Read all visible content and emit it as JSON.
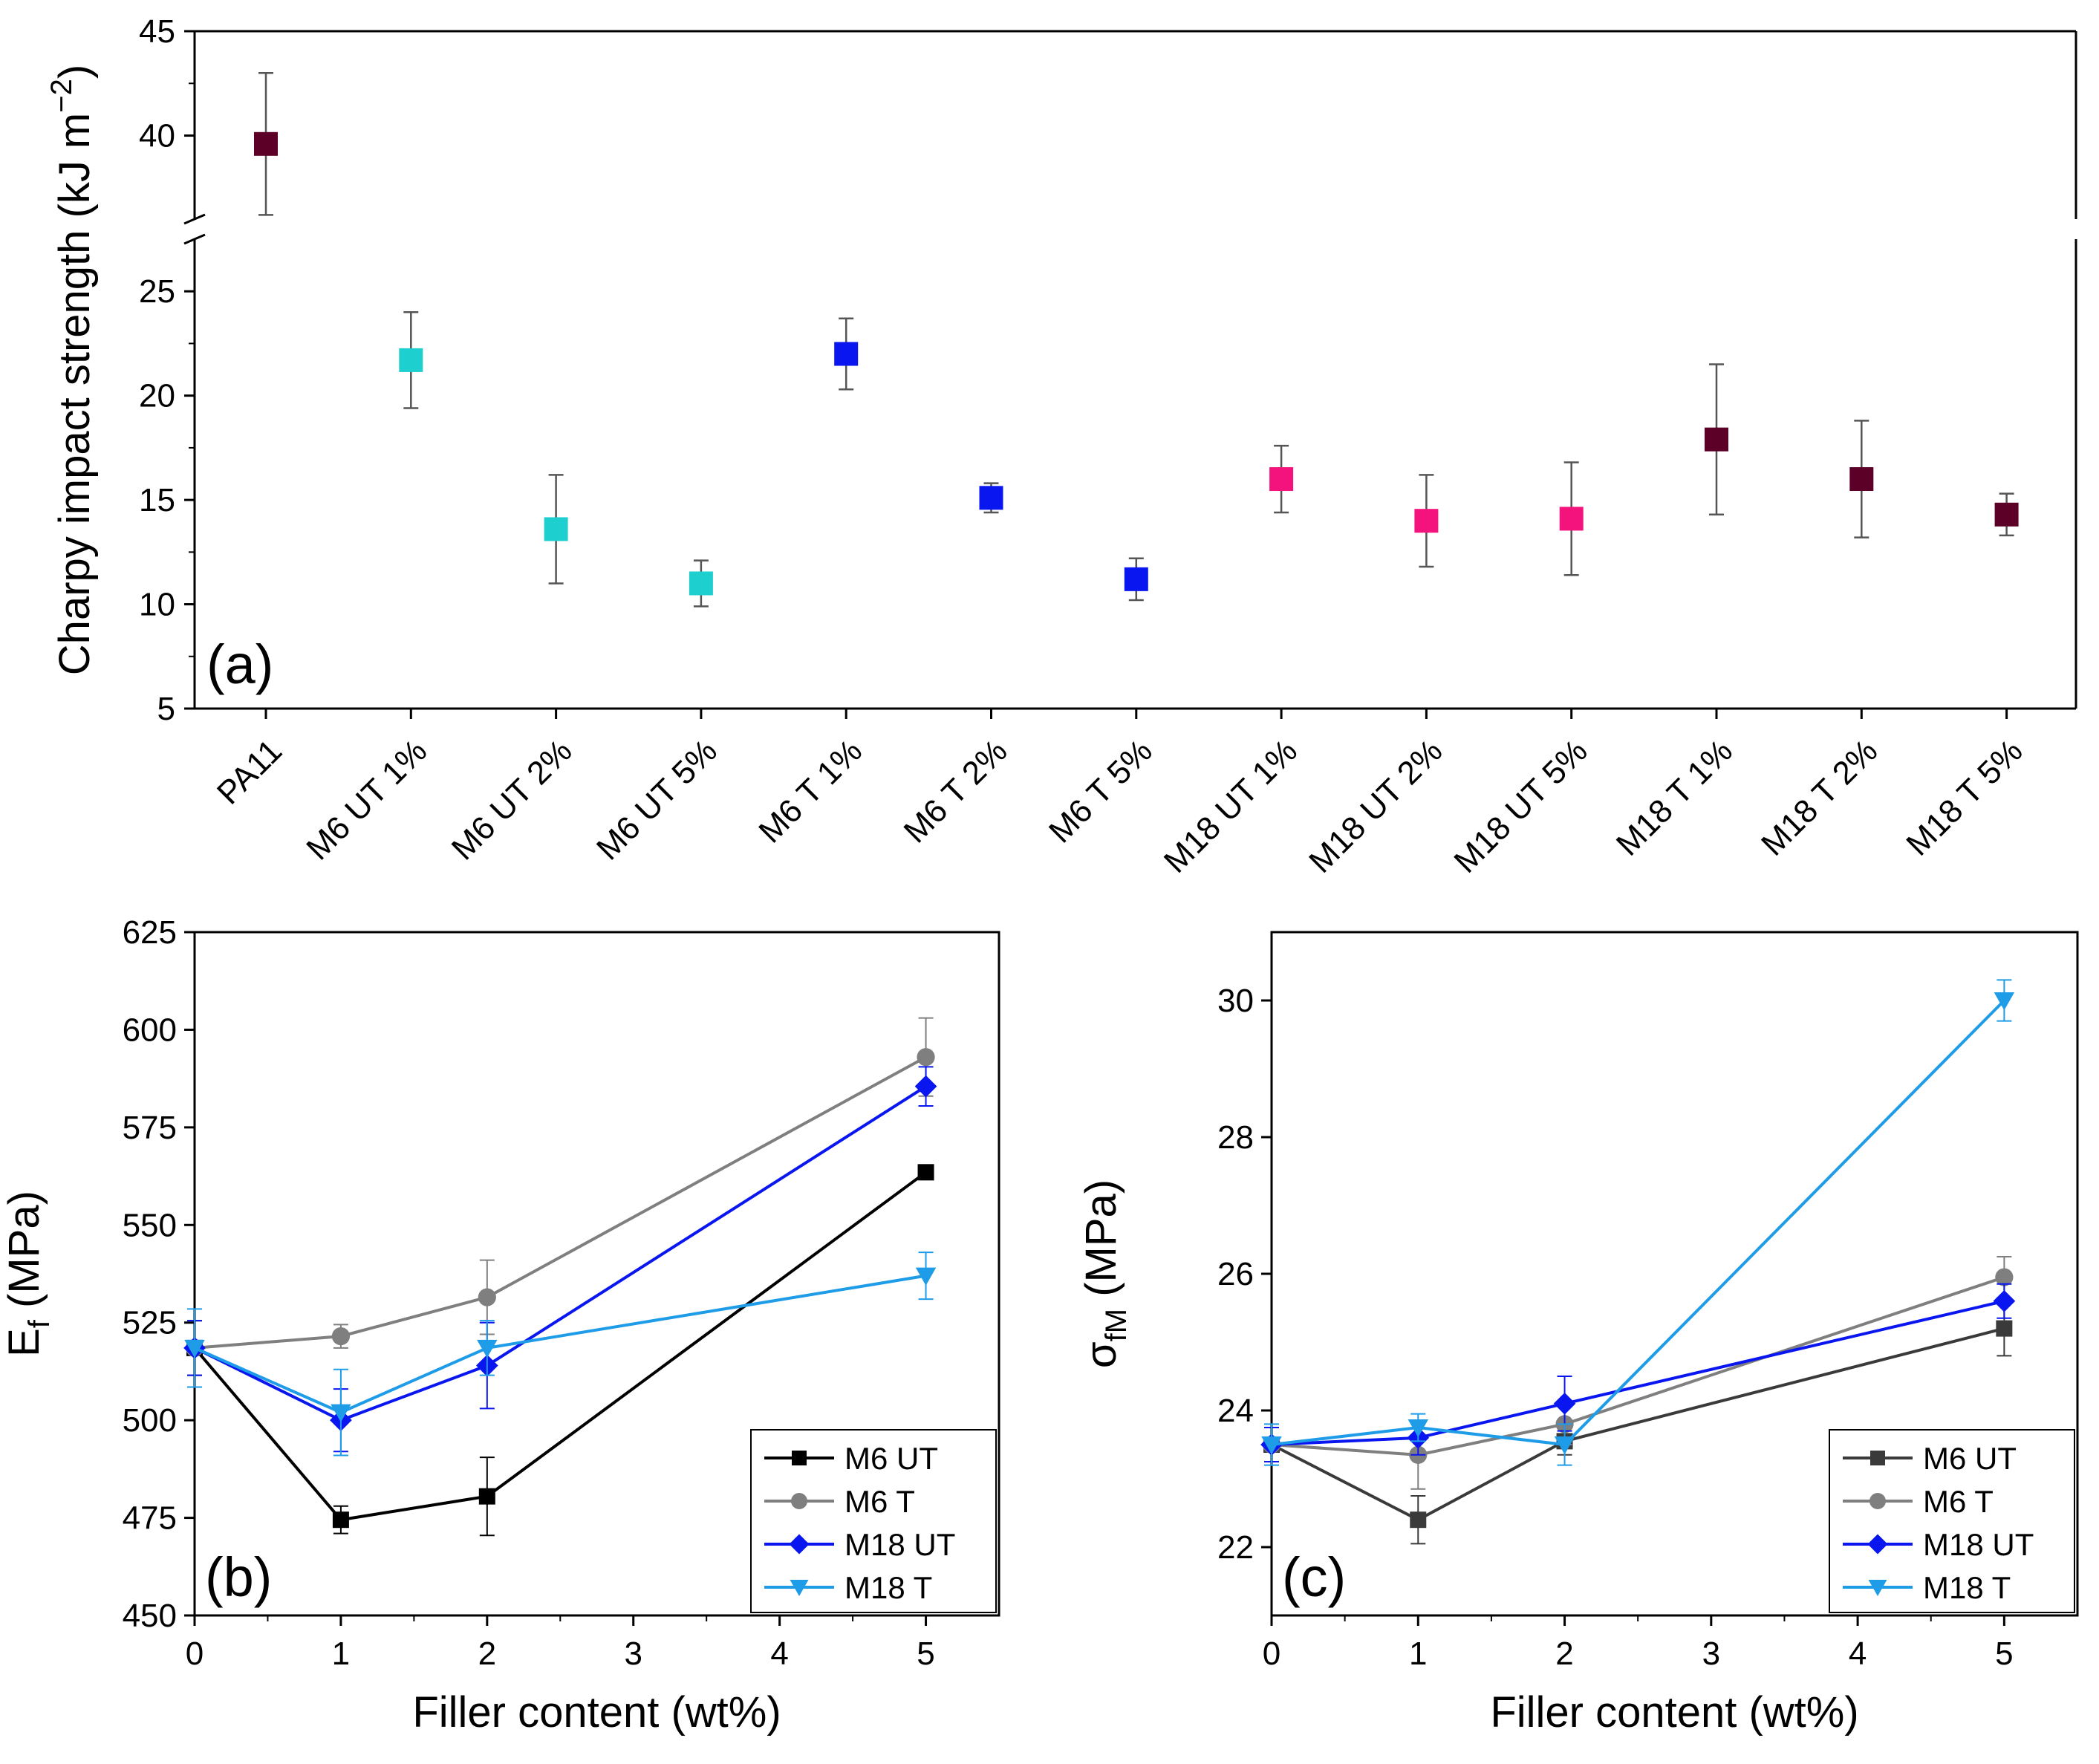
{
  "chart_data": [
    {
      "panel": "(a)",
      "type": "scatter",
      "ylabel_main": "Charpy impact strength (kJ m",
      "ylabel_sup": "−2",
      "ylabel_end": ")",
      "categories": [
        "PA11",
        "M6 UT 1%",
        "M6 UT 2%",
        "M6 UT 5%",
        "M6 T 1%",
        "M6 T 2%",
        "M6 T 5%",
        "M18 UT 1%",
        "M18 UT 2%",
        "M18 UT 5%",
        "M18 T 1%",
        "M18 T 2%",
        "M18 T 5%"
      ],
      "values": [
        39.6,
        21.7,
        13.6,
        11.0,
        22.0,
        15.1,
        11.2,
        16.0,
        14.0,
        14.1,
        17.9,
        16.0,
        14.3
      ],
      "errors": [
        3.4,
        2.3,
        2.6,
        1.1,
        1.7,
        0.7,
        1.0,
        1.6,
        2.2,
        2.7,
        3.6,
        2.8,
        1.0
      ],
      "colors": [
        "#5c0027",
        "#1ecfcf",
        "#1ecfcf",
        "#1ecfcf",
        "#0a16ef",
        "#0a16ef",
        "#0a16ef",
        "#f4127c",
        "#f4127c",
        "#f4127c",
        "#5c0027",
        "#5c0027",
        "#5c0027"
      ],
      "ylim_lower": [
        5,
        27.5
      ],
      "ylim_upper": [
        36,
        45
      ],
      "yticks_lower": [
        5,
        10,
        15,
        20,
        25
      ],
      "yticks_upper": [
        40,
        45
      ],
      "axis_break": true
    },
    {
      "panel": "(b)",
      "type": "line",
      "xlabel": "Filler content (wt%)",
      "ylabel_main": "E",
      "ylabel_sub": "f",
      "ylabel_end": " (MPa)",
      "x": [
        0,
        1,
        2,
        5
      ],
      "xlim": [
        0,
        5.5
      ],
      "xticks": [
        0,
        1,
        2,
        3,
        4,
        5
      ],
      "ylim": [
        450,
        625
      ],
      "yticks": [
        450,
        475,
        500,
        525,
        550,
        575,
        600,
        625
      ],
      "series": [
        {
          "name": "M6 UT",
          "color": "#000000",
          "marker": "square",
          "values": [
            518.5,
            474.5,
            480.5,
            563.5
          ],
          "errors": [
            7,
            3.5,
            10,
            0
          ]
        },
        {
          "name": "M6 T",
          "color": "#7f7f7f",
          "marker": "circle",
          "values": [
            518.5,
            521.5,
            531.5,
            593
          ],
          "errors": [
            7,
            3,
            9.5,
            10
          ]
        },
        {
          "name": "M18 UT",
          "color": "#0a16ef",
          "marker": "diamond",
          "values": [
            518.5,
            500,
            514,
            585.5
          ],
          "errors": [
            7,
            8,
            11,
            5
          ]
        },
        {
          "name": "M18 T",
          "color": "#1e9ce8",
          "marker": "triangle-down",
          "values": [
            518.5,
            502,
            518.5,
            537
          ],
          "errors": [
            10,
            11,
            7,
            6
          ]
        }
      ]
    },
    {
      "panel": "(c)",
      "type": "line",
      "xlabel": "Filler content (wt%)",
      "ylabel_main": "σ",
      "ylabel_sub": "fM",
      "ylabel_end": " (MPa)",
      "x": [
        0,
        1,
        2,
        5
      ],
      "xlim": [
        0,
        5.5
      ],
      "xticks": [
        0,
        1,
        2,
        3,
        4,
        5
      ],
      "ylim": [
        21,
        31
      ],
      "yticks": [
        22,
        24,
        26,
        28,
        30
      ],
      "series": [
        {
          "name": "M6 UT",
          "color": "#3a3a3a",
          "marker": "square",
          "values": [
            23.5,
            22.4,
            23.55,
            25.2
          ],
          "errors": [
            0.25,
            0.35,
            0.2,
            0.4
          ]
        },
        {
          "name": "M6 T",
          "color": "#7f7f7f",
          "marker": "circle",
          "values": [
            23.5,
            23.35,
            23.8,
            25.95
          ],
          "errors": [
            0.25,
            0.5,
            0.3,
            0.3
          ]
        },
        {
          "name": "M18 UT",
          "color": "#0a16ef",
          "marker": "diamond",
          "values": [
            23.5,
            23.6,
            24.1,
            25.6
          ],
          "errors": [
            0.25,
            0.25,
            0.4,
            0.25
          ]
        },
        {
          "name": "M18 T",
          "color": "#1e9ce8",
          "marker": "triangle-down",
          "values": [
            23.5,
            23.75,
            23.5,
            30.0
          ],
          "errors": [
            0.3,
            0.2,
            0.3,
            0.3
          ]
        }
      ]
    }
  ]
}
